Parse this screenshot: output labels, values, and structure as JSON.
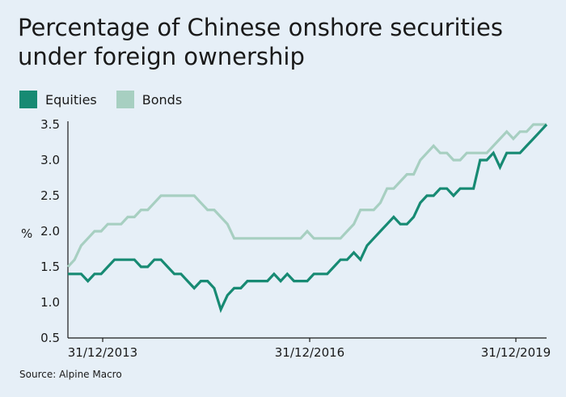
{
  "title": "Percentage of Chinese onshore securities under foreign ownership",
  "source": "Source: Alpine Macro",
  "chart_data": {
    "type": "line",
    "ylabel": "%",
    "ylim": [
      0.5,
      3.5
    ],
    "yticks": [
      "3.5",
      "3.0",
      "2.5",
      "2.0",
      "1.5",
      "1.0",
      "0.5"
    ],
    "xticks": [
      "31/12/2013",
      "31/12/2016",
      "31/12/2019"
    ],
    "x_range": [
      "2013-09",
      "2019-12"
    ],
    "series": [
      {
        "name": "Equities",
        "color": "#178a73",
        "values": [
          1.4,
          1.4,
          1.4,
          1.3,
          1.4,
          1.4,
          1.5,
          1.6,
          1.6,
          1.6,
          1.6,
          1.5,
          1.5,
          1.6,
          1.6,
          1.5,
          1.4,
          1.4,
          1.3,
          1.2,
          1.3,
          1.3,
          1.2,
          0.9,
          1.1,
          1.2,
          1.2,
          1.3,
          1.3,
          1.3,
          1.3,
          1.4,
          1.3,
          1.4,
          1.3,
          1.3,
          1.3,
          1.4,
          1.4,
          1.4,
          1.5,
          1.6,
          1.6,
          1.7,
          1.6,
          1.8,
          1.9,
          2.0,
          2.1,
          2.2,
          2.1,
          2.1,
          2.2,
          2.4,
          2.5,
          2.5,
          2.6,
          2.6,
          2.5,
          2.6,
          2.6,
          2.6,
          3.0,
          3.0,
          3.1,
          2.9,
          3.1,
          3.1,
          3.1,
          3.2,
          3.3,
          3.4,
          3.5
        ]
      },
      {
        "name": "Bonds",
        "color": "#a7cfc1",
        "values": [
          1.5,
          1.6,
          1.8,
          1.9,
          2.0,
          2.0,
          2.1,
          2.1,
          2.1,
          2.2,
          2.2,
          2.3,
          2.3,
          2.4,
          2.5,
          2.5,
          2.5,
          2.5,
          2.5,
          2.5,
          2.4,
          2.3,
          2.3,
          2.2,
          2.1,
          1.9,
          1.9,
          1.9,
          1.9,
          1.9,
          1.9,
          1.9,
          1.9,
          1.9,
          1.9,
          1.9,
          2.0,
          1.9,
          1.9,
          1.9,
          1.9,
          1.9,
          2.0,
          2.1,
          2.3,
          2.3,
          2.3,
          2.4,
          2.6,
          2.6,
          2.7,
          2.8,
          2.8,
          3.0,
          3.1,
          3.2,
          3.1,
          3.1,
          3.0,
          3.0,
          3.1,
          3.1,
          3.1,
          3.1,
          3.2,
          3.3,
          3.4,
          3.3,
          3.4,
          3.4,
          3.5,
          3.5,
          3.5
        ]
      }
    ]
  }
}
